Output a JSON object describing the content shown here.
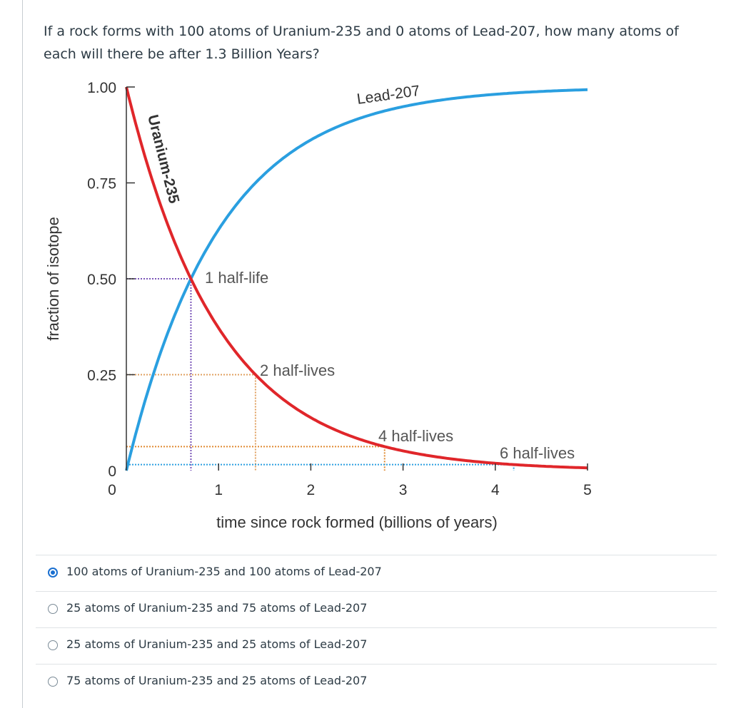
{
  "question": {
    "text": "If a rock forms with 100 atoms of Uranium-235 and 0 atoms of Lead-207, how many atoms of each will there be after 1.3 Billion Years?"
  },
  "chart_data": {
    "type": "line",
    "xlabel": "time since rock formed (billions of years)",
    "ylabel": "fraction of isotope",
    "x_ticks": [
      "0",
      "1",
      "2",
      "3",
      "4",
      "5"
    ],
    "y_ticks": [
      "0",
      "0.25",
      "0.50",
      "0.75",
      "1.00"
    ],
    "xlim": [
      0,
      5
    ],
    "ylim": [
      0,
      1
    ],
    "series": [
      {
        "name": "Uranium-235",
        "color": "#e0262a",
        "half_life": 0.7,
        "curve": "decay"
      },
      {
        "name": "Lead-207",
        "color": "#2a9fe0",
        "half_life": 0.7,
        "curve": "growth"
      }
    ],
    "annotations": [
      {
        "text": "1 half-life",
        "x": 0.7,
        "y": 0.5
      },
      {
        "text": "2 half-lives",
        "x": 1.4,
        "y": 0.25
      },
      {
        "text": "4 half-lives",
        "x": 2.8,
        "y": 0.0625
      },
      {
        "text": "6 half-lives",
        "x": 4.2,
        "y": 0.015625
      }
    ]
  },
  "answers": [
    {
      "label": "100 atoms of Uranium-235 and 100 atoms of Lead-207",
      "selected": true
    },
    {
      "label": "25 atoms of Uranium-235 and 75 atoms of Lead-207",
      "selected": false
    },
    {
      "label": "25 atoms of Uranium-235 and 25 atoms of Lead-207",
      "selected": false
    },
    {
      "label": "75 atoms of Uranium-235 and 25 atoms of Lead-207",
      "selected": false
    }
  ]
}
